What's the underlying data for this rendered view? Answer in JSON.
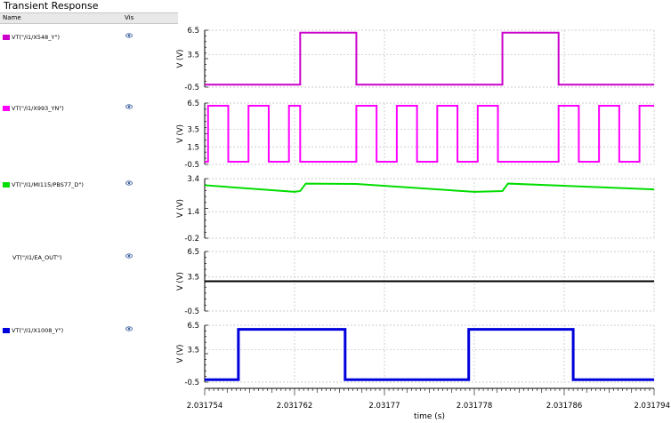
{
  "window": {
    "title": "Transient Response"
  },
  "panel": {
    "name_header": "Name",
    "vis_header": "Vis"
  },
  "chart_data": {
    "type": "line",
    "xlabel": "time (s)",
    "x_ticks": [
      "2.031754",
      "2.031762",
      "2.03177",
      "2.031778",
      "2.031786",
      "2.031794"
    ],
    "x_range": [
      2.031754,
      2.031794
    ],
    "subplots": [
      {
        "name": "VT(\"/I1/X548_Y\")",
        "color": "#cc00cc",
        "ylabel": "V (V)",
        "y_ticks": [
          "6.5",
          "3.5",
          "-0.5"
        ],
        "y_range": [
          -0.5,
          6.5
        ],
        "x": [
          2.031754,
          2.0317625,
          2.0317625,
          2.0317675,
          2.0317675,
          2.0317805,
          2.0317805,
          2.0317855,
          2.0317855,
          2.031794
        ],
        "y": [
          -0.2,
          -0.2,
          6.2,
          6.2,
          -0.2,
          -0.2,
          6.2,
          6.2,
          -0.2,
          -0.2
        ]
      },
      {
        "name": "VT(\"/I1/X993_YN\")",
        "color": "#ff00ff",
        "ylabel": "V (V)",
        "y_ticks": [
          "6.5",
          "3.5",
          "1.5",
          "-0.5"
        ],
        "y_range": [
          -0.5,
          6.5
        ],
        "x": [
          2.031754,
          2.0317543,
          2.0317543,
          2.0317561,
          2.0317561,
          2.0317579,
          2.0317579,
          2.0317597,
          2.0317597,
          2.0317615,
          2.0317615,
          2.0317625,
          2.0317625,
          2.0317675,
          2.0317675,
          2.0317693,
          2.0317693,
          2.0317711,
          2.0317711,
          2.0317729,
          2.0317729,
          2.0317747,
          2.0317747,
          2.0317765,
          2.0317765,
          2.0317783,
          2.0317783,
          2.0317801,
          2.0317801,
          2.0317805,
          2.0317805,
          2.0317855,
          2.0317855,
          2.0317873,
          2.0317873,
          2.0317891,
          2.0317891,
          2.0317909,
          2.0317909,
          2.0317927,
          2.0317927,
          2.031794
        ],
        "y": [
          -0.2,
          -0.2,
          6.2,
          6.2,
          -0.2,
          -0.2,
          6.2,
          6.2,
          -0.2,
          -0.2,
          6.2,
          6.2,
          -0.2,
          -0.2,
          6.2,
          6.2,
          -0.2,
          -0.2,
          6.2,
          6.2,
          -0.2,
          -0.2,
          6.2,
          6.2,
          -0.2,
          -0.2,
          6.2,
          6.2,
          -0.2,
          -0.2,
          -0.2,
          -0.2,
          6.2,
          6.2,
          -0.2,
          -0.2,
          6.2,
          6.2,
          -0.2,
          -0.2,
          6.2,
          6.2
        ]
      },
      {
        "name": "VT(\"/I1/MI115/PBS77_D\")",
        "color": "#00dd00",
        "ylabel": "V (V)",
        "y_ticks": [
          "3.4",
          "1.4",
          "-0.2"
        ],
        "y_range": [
          -0.2,
          3.4
        ],
        "x": [
          2.031754,
          2.031762,
          2.0317625,
          2.031763,
          2.0317675,
          2.031778,
          2.0317805,
          2.031781,
          2.031794
        ],
        "y": [
          3.0,
          2.6,
          2.65,
          3.1,
          3.08,
          2.6,
          2.65,
          3.1,
          2.75
        ]
      },
      {
        "name": "VT(\"/I1/EA_OUT\")",
        "color": "#000000",
        "ylabel": "V (V)",
        "y_ticks": [
          "6.5",
          "3.5",
          "-0.5"
        ],
        "y_range": [
          -0.5,
          6.5
        ],
        "x": [
          2.031754,
          2.031794
        ],
        "y": [
          3.0,
          3.0
        ]
      },
      {
        "name": "VT(\"/I1/X1008_Y\")",
        "color": "#0000dd",
        "ylabel": "V (V)",
        "y_ticks": [
          "6.5",
          "3.5",
          "-0.5"
        ],
        "y_range": [
          -0.5,
          6.5
        ],
        "x": [
          2.031754,
          2.031757,
          2.031757,
          2.0317665,
          2.0317665,
          2.0317775,
          2.0317775,
          2.0317868,
          2.0317868,
          2.031794
        ],
        "y": [
          -0.2,
          -0.2,
          6.0,
          6.0,
          -0.2,
          -0.2,
          6.0,
          6.0,
          -0.2,
          -0.2
        ]
      }
    ]
  }
}
